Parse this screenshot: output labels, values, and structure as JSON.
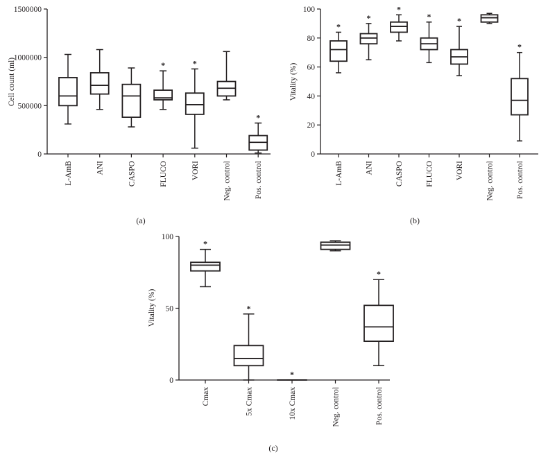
{
  "figure": {
    "panels": [
      "(a)",
      "(b)",
      "(c)"
    ]
  },
  "chart_data": [
    {
      "panel": "(a)",
      "type": "box",
      "ylabel": "Cell count (ml)",
      "xlabel": "",
      "ylim": [
        0,
        1500000
      ],
      "yticks": [
        0,
        500000,
        1000000,
        1500000
      ],
      "ytick_labels": [
        "0",
        "500000",
        "1000000",
        "1500000"
      ],
      "significance_marker": "*",
      "grid": false,
      "categories": [
        "L-AmB",
        "ANI",
        "CASPO",
        "FLUCO",
        "VORI",
        "Neg. control",
        "Pos. control"
      ],
      "boxes": [
        {
          "min": 310000,
          "q1": 500000,
          "median": 600000,
          "q3": 790000,
          "max": 1030000,
          "significant": false
        },
        {
          "min": 460000,
          "q1": 620000,
          "median": 710000,
          "q3": 840000,
          "max": 1080000,
          "significant": false
        },
        {
          "min": 280000,
          "q1": 380000,
          "median": 600000,
          "q3": 720000,
          "max": 890000,
          "significant": false
        },
        {
          "min": 460000,
          "q1": 560000,
          "median": 580000,
          "q3": 660000,
          "max": 860000,
          "significant": true
        },
        {
          "min": 60000,
          "q1": 410000,
          "median": 510000,
          "q3": 630000,
          "max": 880000,
          "significant": true
        },
        {
          "min": 560000,
          "q1": 600000,
          "median": 680000,
          "q3": 750000,
          "max": 1060000,
          "significant": false
        },
        {
          "min": 10000,
          "q1": 40000,
          "median": 120000,
          "q3": 190000,
          "max": 320000,
          "significant": true
        }
      ]
    },
    {
      "panel": "(b)",
      "type": "box",
      "ylabel": "Vitality (%)",
      "xlabel": "",
      "ylim": [
        0,
        100
      ],
      "yticks": [
        0,
        20,
        40,
        60,
        80,
        100
      ],
      "ytick_labels": [
        "0",
        "20",
        "40",
        "60",
        "80",
        "100"
      ],
      "significance_marker": "*",
      "grid": false,
      "categories": [
        "L-AmB",
        "ANI",
        "CASPO",
        "FLUCO",
        "VORI",
        "Neg. control",
        "Pos. control"
      ],
      "boxes": [
        {
          "min": 56,
          "q1": 64,
          "median": 72,
          "q3": 78,
          "max": 84,
          "significant": true
        },
        {
          "min": 65,
          "q1": 76,
          "median": 80,
          "q3": 83,
          "max": 90,
          "significant": true
        },
        {
          "min": 78,
          "q1": 84,
          "median": 88,
          "q3": 91,
          "max": 96,
          "significant": true
        },
        {
          "min": 63,
          "q1": 72,
          "median": 76,
          "q3": 80,
          "max": 91,
          "significant": true
        },
        {
          "min": 54,
          "q1": 62,
          "median": 67,
          "q3": 72,
          "max": 88,
          "significant": true
        },
        {
          "min": 90,
          "q1": 91,
          "median": 94,
          "q3": 96,
          "max": 97,
          "significant": false
        },
        {
          "min": 9,
          "q1": 27,
          "median": 37,
          "q3": 52,
          "max": 70,
          "significant": true
        }
      ]
    },
    {
      "panel": "(c)",
      "type": "box",
      "ylabel": "Vitality (%)",
      "xlabel": "",
      "ylim": [
        0,
        100
      ],
      "yticks": [
        0,
        50,
        100
      ],
      "ytick_labels": [
        "0",
        "50",
        "100"
      ],
      "significance_marker": "*",
      "grid": false,
      "categories": [
        "Cmax",
        "5x Cmax",
        "10x Cmax",
        "Neg. control",
        "Pos. control"
      ],
      "boxes": [
        {
          "min": 65,
          "q1": 76,
          "median": 80,
          "q3": 82,
          "max": 91,
          "significant": true
        },
        {
          "min": 0,
          "q1": 10,
          "median": 15,
          "q3": 24,
          "max": 46,
          "significant": true
        },
        {
          "min": 0,
          "q1": 0,
          "median": 0,
          "q3": 0,
          "max": 0,
          "significant": true
        },
        {
          "min": 90,
          "q1": 91,
          "median": 94,
          "q3": 96,
          "max": 97,
          "significant": false
        },
        {
          "min": 10,
          "q1": 27,
          "median": 37,
          "q3": 52,
          "max": 70,
          "significant": true
        }
      ]
    }
  ]
}
